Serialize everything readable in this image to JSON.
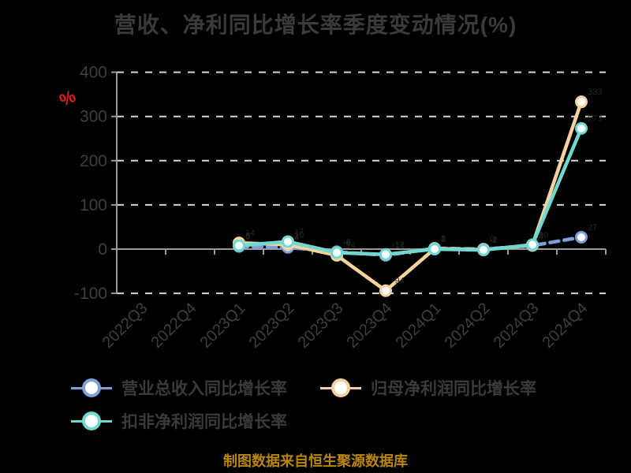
{
  "title": "营收、净利同比增长率季度变动情况(%)",
  "y_axis_name": "%",
  "footer": "制图数据来自恒生聚源数据库",
  "colors": {
    "background": "#000000",
    "title_text": "#3a3a3a",
    "axis_text": "#3e3e3e",
    "axis_line": "#999999",
    "gridline": "#d6d6d6",
    "y_axis_name": "#e51c1c",
    "footer_text": "#b8860b",
    "series_revenue": "#7e9fd8",
    "series_net_profit": "#f8d29c",
    "series_non_gaap": "#6fd8d0",
    "data_label": "#262626"
  },
  "chart_data": {
    "type": "line",
    "title": "营收、净利同比增长率季度变动情况(%)",
    "categories": [
      "2022Q3",
      "2022Q4",
      "2023Q1",
      "2023Q2",
      "2023Q3",
      "2023Q4",
      "2024Q1",
      "2024Q2",
      "2024Q3",
      "2024Q4"
    ],
    "series": [
      {
        "name": "营业总收入同比增长率",
        "color": "#7e9fd8",
        "style": "dashed",
        "values": [
          null,
          null,
          6,
          4,
          -6,
          -14,
          2,
          0,
          8,
          27
        ]
      },
      {
        "name": "归母净利润同比增长率",
        "color": "#f8d29c",
        "style": "solid",
        "values": [
          null,
          null,
          14,
          10,
          -14,
          -94,
          1,
          -1,
          9,
          333
        ]
      },
      {
        "name": "扣非净利润同比增长率",
        "color": "#6fd8d0",
        "style": "solid",
        "values": [
          null,
          null,
          8,
          17,
          -8,
          -12,
          0,
          -2,
          10,
          273
        ]
      }
    ],
    "ylabel": "%",
    "ylim": [
      -100,
      400
    ],
    "yticks": [
      -100,
      0,
      100,
      200,
      300,
      400
    ],
    "grid": "dashed horizontal",
    "legend_position": "bottom",
    "marker": "circle-white-fill"
  }
}
